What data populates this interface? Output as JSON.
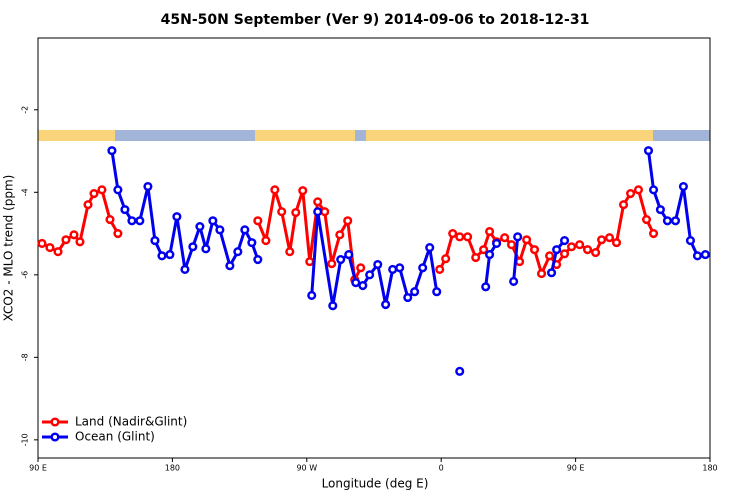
{
  "chart_data": {
    "type": "line",
    "title": "45N-50N September (Ver 9)   2014-09-06 to 2018-12-31",
    "x_label": "Longitude (deg E)",
    "y_label": "XCO2 - MLO trend (ppm)",
    "xlim": [
      90,
      540
    ],
    "xticks": [
      {
        "value": 90,
        "label": "90 E"
      },
      180,
      {
        "value": 270,
        "label": "90 W"
      },
      {
        "value": 360,
        "label": "0"
      },
      {
        "value": 450,
        "label": "90 E"
      },
      {
        "value": 540,
        "label": "180"
      }
    ],
    "ylim": [
      -10.44,
      -0.26
    ],
    "yticks": [
      -2,
      -4,
      -6,
      -8,
      -10
    ],
    "legend": "bottom-left",
    "series": [
      {
        "name": "Land (Nadir&Glint)",
        "color": "#ff0000",
        "x": [
          92.7,
          98.0,
          103.4,
          108.7,
          114.1,
          118.1,
          123.5,
          127.5,
          132.8,
          138.2,
          143.5,
          null,
          237.2,
          242.6,
          248.6,
          253.2,
          258.6,
          262.6,
          267.3,
          272.0,
          277.3,
          282.0,
          286.7,
          292.1,
          297.4,
          302.1,
          306.1,
          null,
          359.0,
          363.0,
          367.7,
          372.4,
          377.7,
          383.1,
          388.4,
          392.4,
          397.1,
          402.5,
          407.1,
          412.5,
          417.2,
          422.5,
          427.2,
          432.6,
          437.3,
          442.6,
          447.3,
          452.7,
          458.0,
          463.4,
          467.4,
          472.7,
          477.4,
          482.1,
          486.8,
          492.1,
          497.5,
          502.2
        ],
        "values": [
          -5.24,
          -5.34,
          -5.44,
          -5.15,
          -5.03,
          -5.2,
          -4.3,
          -4.03,
          -3.94,
          -4.66,
          -5.0,
          null,
          -4.69,
          -5.17,
          -3.94,
          -4.47,
          -5.44,
          -4.49,
          -3.96,
          -5.68,
          -4.23,
          -4.47,
          -5.73,
          -5.03,
          -4.69,
          -6.12,
          -5.83,
          null,
          -5.87,
          -5.61,
          -5.0,
          -5.08,
          -5.08,
          -5.58,
          -5.39,
          -4.95,
          -5.2,
          -5.1,
          -5.27,
          -5.68,
          -5.15,
          -5.39,
          -5.97,
          -5.54,
          -5.75,
          -5.49,
          -5.32,
          -5.27,
          -5.39,
          -5.46,
          -5.15,
          -5.1,
          -5.22,
          -4.3,
          -4.03,
          -3.94,
          -4.66,
          -5.0
        ]
      },
      {
        "name": "Ocean (Glint)",
        "color": "#0000ee",
        "x": [
          139.5,
          143.5,
          148.2,
          152.9,
          158.2,
          163.6,
          168.3,
          173.0,
          178.3,
          183.0,
          188.4,
          193.7,
          198.4,
          202.4,
          207.1,
          211.8,
          218.5,
          223.8,
          228.5,
          233.2,
          237.2,
          null,
          273.3,
          277.3,
          287.4,
          292.7,
          298.1,
          302.8,
          307.5,
          312.1,
          317.5,
          322.8,
          327.5,
          332.2,
          337.6,
          342.2,
          347.6,
          352.3,
          357.0,
          null,
          372.4,
          null,
          389.8,
          392.4,
          397.1,
          null,
          408.5,
          411.2,
          null,
          433.9,
          437.3,
          442.6,
          null,
          498.8,
          502.2,
          506.8,
          511.5,
          516.9,
          522.2,
          526.9,
          531.6,
          536.9
        ],
        "values": [
          -2.99,
          -3.94,
          -4.42,
          -4.69,
          -4.69,
          -3.86,
          -5.17,
          -5.54,
          -5.51,
          -4.59,
          -5.87,
          -5.32,
          -4.83,
          -5.37,
          -4.69,
          -4.91,
          -5.78,
          -5.44,
          -4.91,
          -5.22,
          -5.63,
          null,
          -6.5,
          -4.47,
          -6.75,
          -5.63,
          -5.51,
          -6.19,
          -6.26,
          -6.0,
          -5.75,
          -6.72,
          -5.87,
          -5.83,
          -6.55,
          -6.41,
          -5.83,
          -5.34,
          -6.41,
          null,
          -8.34,
          null,
          -6.29,
          -5.51,
          -5.24,
          null,
          -6.16,
          -5.08,
          null,
          -5.95,
          -5.39,
          -5.17,
          null,
          -2.99,
          -3.94,
          -4.42,
          -4.69,
          -4.69,
          -3.86,
          -5.17,
          -5.54,
          -5.51
        ]
      }
    ]
  }
}
